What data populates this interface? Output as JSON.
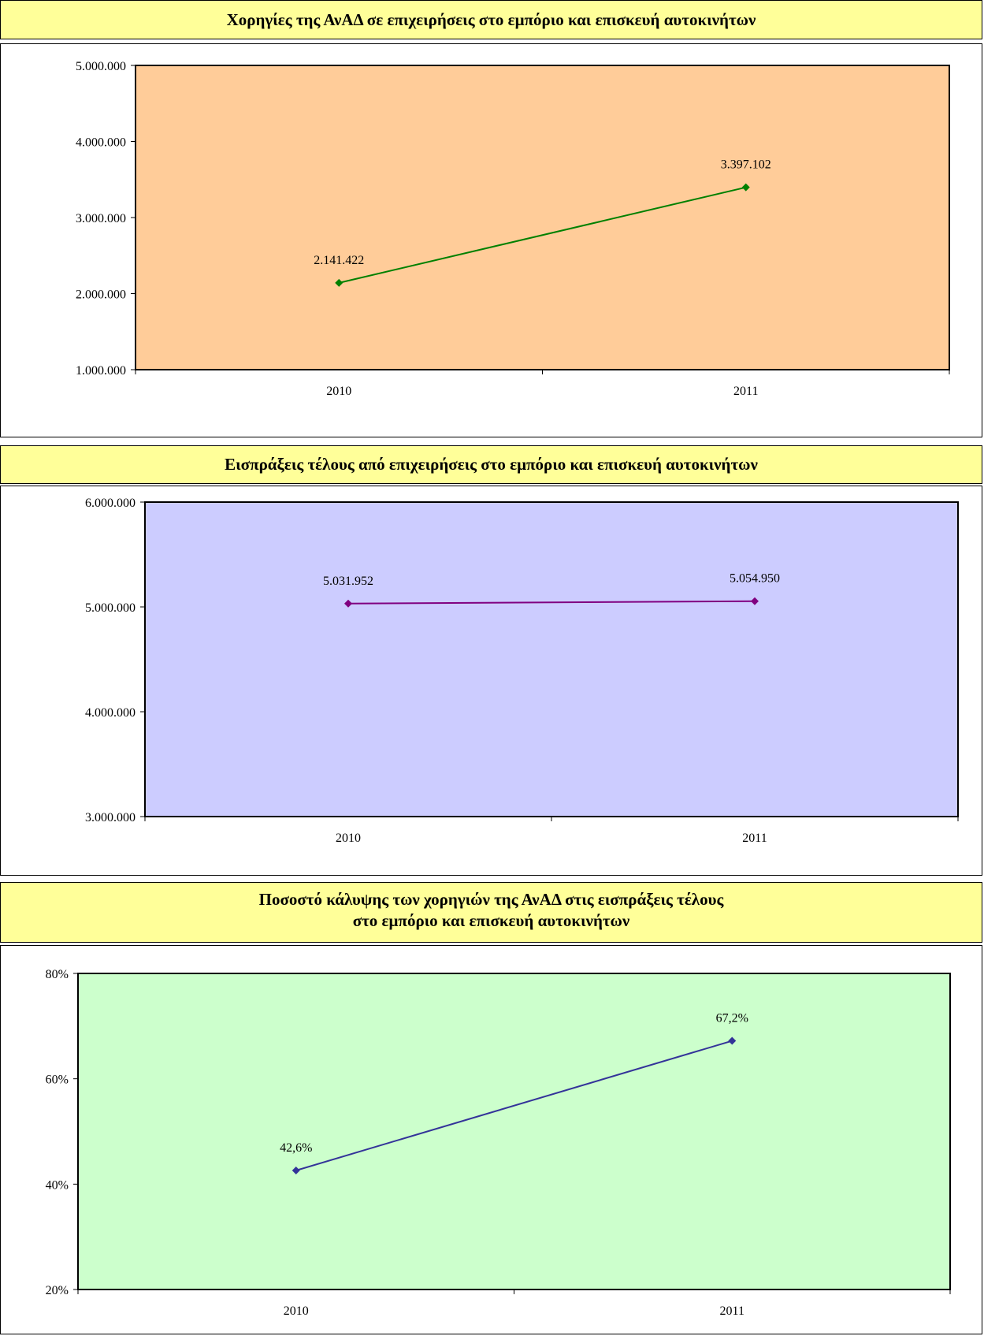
{
  "chart_data": [
    {
      "type": "line",
      "title": "Χορηγίες της ΑνΑΔ σε επιχειρήσεις στο εμπόριο και επισκευή αυτοκινήτων",
      "categories": [
        "2010",
        "2011"
      ],
      "series": [
        {
          "values": [
            2141422,
            3397102
          ],
          "labels": [
            "2.141.422",
            "3.397.102"
          ]
        }
      ],
      "ylim": [
        1000000,
        5000000
      ],
      "yticks": [
        1000000,
        2000000,
        3000000,
        4000000,
        5000000
      ],
      "ytick_labels": [
        "1.000.000",
        "2.000.000",
        "3.000.000",
        "4.000.000",
        "5.000.000"
      ],
      "grid": false,
      "legend": "none",
      "colors": {
        "plot_bg": "#ffcc99",
        "line": "#008000"
      }
    },
    {
      "type": "line",
      "title": "Εισπράξεις τέλους από επιχειρήσεις στο εμπόριο και επισκευή αυτοκινήτων",
      "categories": [
        "2010",
        "2011"
      ],
      "series": [
        {
          "values": [
            5031952,
            5054950
          ],
          "labels": [
            "5.031.952",
            "5.054.950"
          ]
        }
      ],
      "ylim": [
        3000000,
        6000000
      ],
      "yticks": [
        3000000,
        4000000,
        5000000,
        6000000
      ],
      "ytick_labels": [
        "3.000.000",
        "4.000.000",
        "5.000.000",
        "6.000.000"
      ],
      "grid": false,
      "legend": "none",
      "colors": {
        "plot_bg": "#ccccff",
        "line": "#800080"
      }
    },
    {
      "type": "line",
      "title": "Ποσοστό κάλυψης των χορηγιών της ΑνΑΔ στις εισπράξεις τέλους",
      "subtitle": "στο εμπόριο και επισκευή αυτοκινήτων",
      "categories": [
        "2010",
        "2011"
      ],
      "series": [
        {
          "values": [
            42.6,
            67.2
          ],
          "labels": [
            "42,6%",
            "67,2%"
          ]
        }
      ],
      "ylim": [
        20,
        80
      ],
      "yticks": [
        20,
        40,
        60,
        80
      ],
      "ytick_labels": [
        "20%",
        "40%",
        "60%",
        "80%"
      ],
      "grid": false,
      "legend": "none",
      "colors": {
        "plot_bg": "#ccffcc",
        "line": "#333399"
      }
    }
  ]
}
